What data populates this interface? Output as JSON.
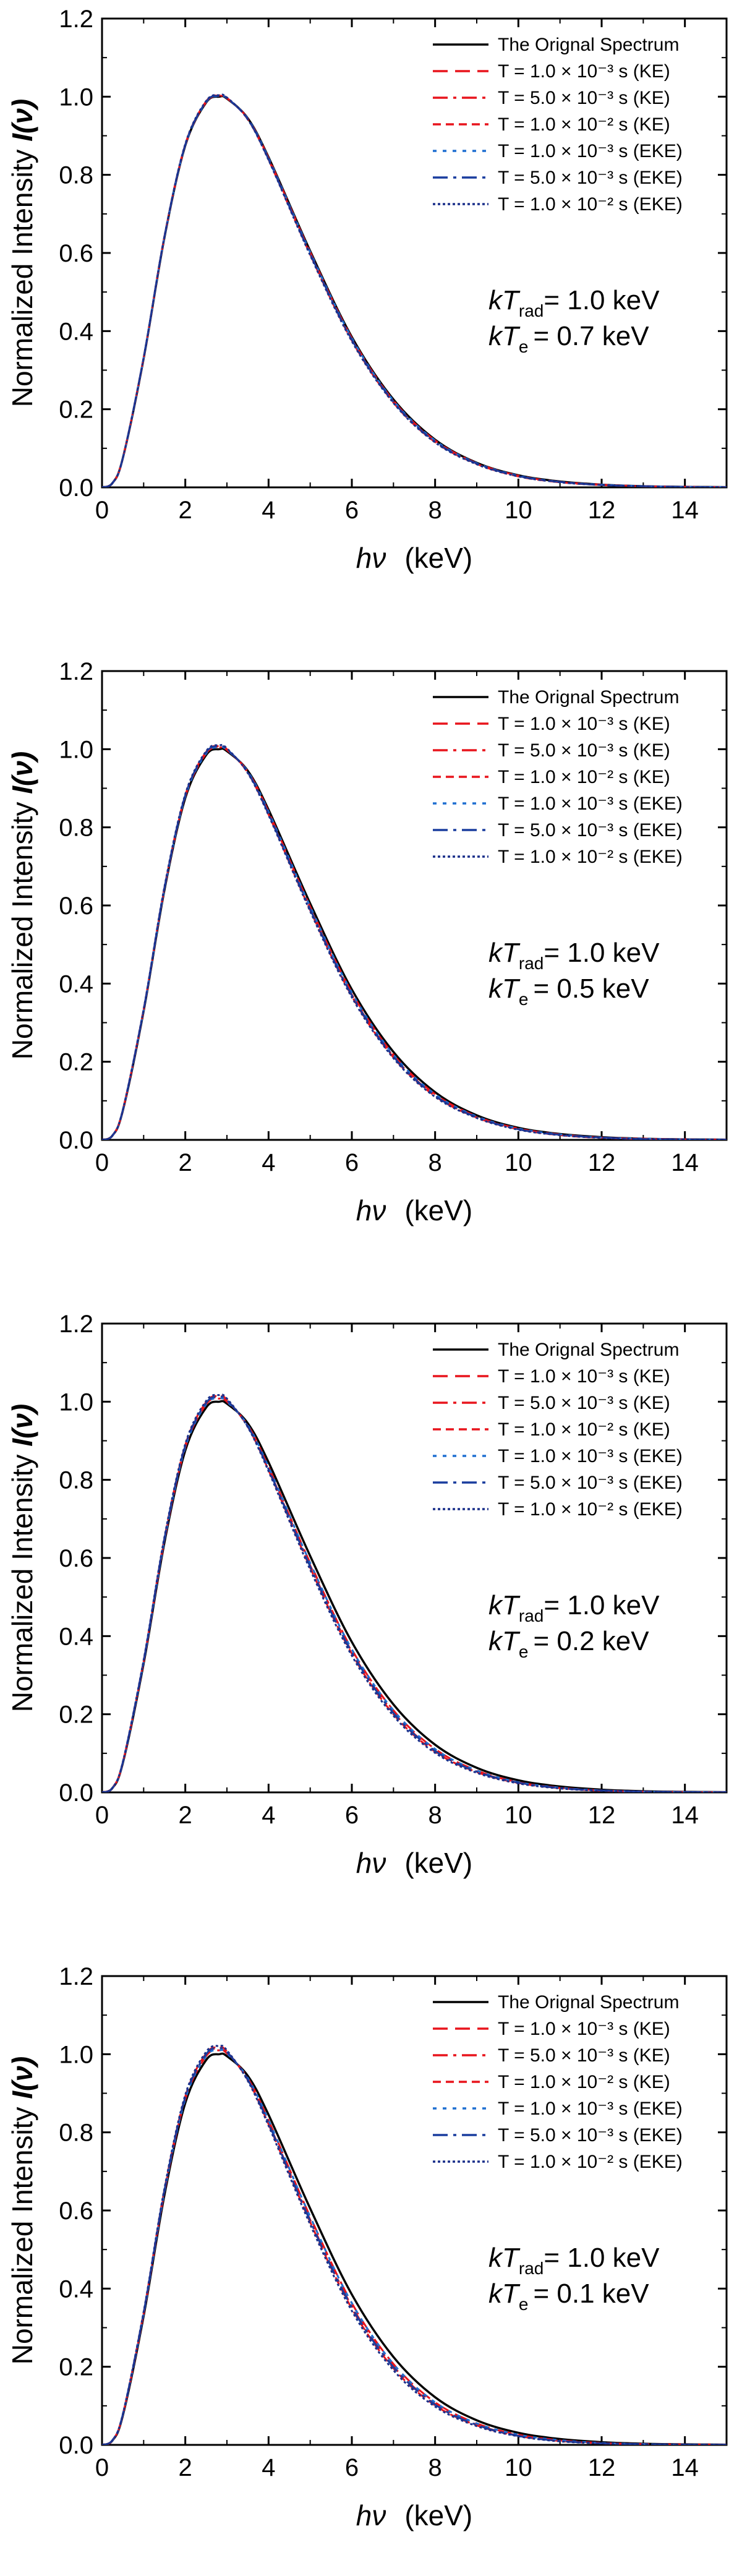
{
  "figure": {
    "xlabel_symbol": "hν",
    "xlabel_unit": "(keV)",
    "ylabel": "Normalized Intensity",
    "ylabel_symbol": "I(ν)",
    "xlim": [
      0,
      15
    ],
    "ylim": [
      0,
      1.2
    ],
    "x_ticks": [
      0,
      2,
      4,
      6,
      8,
      10,
      12,
      14
    ],
    "x_tick_labels": [
      "0",
      "2",
      "4",
      "6",
      "8",
      "10",
      "12",
      "14"
    ],
    "y_ticks": [
      0,
      0.2,
      0.4,
      0.6,
      0.8,
      1.0,
      1.2
    ],
    "y_tick_labels": [
      "0.0",
      "0.2",
      "0.4",
      "0.6",
      "0.8",
      "1.0",
      "1.2"
    ],
    "legend": [
      {
        "label": "The Orignal Spectrum",
        "color": "#000000",
        "dash": "solid"
      },
      {
        "label": "T = 1.0 × 10⁻³ s (KE)",
        "color": "#e8141c",
        "dash": "dash"
      },
      {
        "label": "T = 5.0 × 10⁻³ s (KE)",
        "color": "#e8141c",
        "dash": "dashdot"
      },
      {
        "label": "T = 1.0 × 10⁻² s (KE)",
        "color": "#e8141c",
        "dash": "shortdash"
      },
      {
        "label": "T = 1.0 × 10⁻³ s (EKE)",
        "color": "#1f6fd1",
        "dash": "dot"
      },
      {
        "label": "T = 5.0 × 10⁻³ s (EKE)",
        "color": "#1a3d9e",
        "dash": "dashdot"
      },
      {
        "label": "T = 1.0 × 10⁻² s (EKE)",
        "color": "#1a2f8a",
        "dash": "densedot"
      }
    ],
    "colors": {
      "original": "#000000",
      "ke": "#e8141c",
      "eke": "#1a3d9e",
      "visible_curve": "#3a4fa0"
    }
  },
  "chart_data": [
    {
      "type": "line",
      "title": "",
      "params_line1": "kT",
      "params_line1_sub": "rad",
      "params_line1_value": "= 1.0 keV",
      "params_line2": "kT",
      "params_line2_sub": "e",
      "params_line2_value": "= 0.7 keV",
      "kT_rad_keV": 1.0,
      "kT_e_keV": 0.7,
      "x": [
        0,
        0.25,
        0.5,
        1,
        1.5,
        2,
        2.5,
        2.82,
        3,
        3.5,
        4,
        5,
        6,
        7,
        8,
        9,
        10,
        11,
        12,
        13,
        14,
        15
      ],
      "series": [
        {
          "name": "The Orignal Spectrum",
          "values": [
            0,
            0.011,
            0.075,
            0.33,
            0.64,
            0.875,
            0.985,
            1.0,
            0.995,
            0.945,
            0.845,
            0.605,
            0.385,
            0.225,
            0.122,
            0.063,
            0.031,
            0.015,
            0.007,
            0.003,
            0.0014,
            0.0006
          ]
        },
        {
          "name": "T = 1.0 × 10⁻³ s (KE)",
          "values": [
            0,
            0.011,
            0.075,
            0.331,
            0.641,
            0.876,
            0.986,
            1.001,
            0.996,
            0.944,
            0.843,
            0.602,
            0.382,
            0.222,
            0.12,
            0.062,
            0.03,
            0.014,
            0.007,
            0.003,
            0.0013,
            0.0006
          ]
        },
        {
          "name": "T = 5.0 × 10⁻³ s (KE)",
          "values": [
            0,
            0.011,
            0.075,
            0.331,
            0.642,
            0.877,
            0.987,
            1.002,
            0.996,
            0.943,
            0.841,
            0.599,
            0.379,
            0.22,
            0.118,
            0.061,
            0.029,
            0.014,
            0.006,
            0.003,
            0.0012,
            0.0005
          ]
        },
        {
          "name": "T = 1.0 × 10⁻² s (KE)",
          "values": [
            0,
            0.011,
            0.075,
            0.332,
            0.643,
            0.878,
            0.988,
            1.003,
            0.997,
            0.942,
            0.839,
            0.596,
            0.376,
            0.217,
            0.116,
            0.06,
            0.028,
            0.013,
            0.006,
            0.003,
            0.0012,
            0.0005
          ]
        },
        {
          "name": "T = 1.0 × 10⁻³ s (EKE)",
          "values": [
            0,
            0.011,
            0.075,
            0.331,
            0.641,
            0.876,
            0.986,
            1.001,
            0.996,
            0.944,
            0.843,
            0.602,
            0.382,
            0.222,
            0.12,
            0.062,
            0.03,
            0.014,
            0.007,
            0.003,
            0.0013,
            0.0006
          ]
        },
        {
          "name": "T = 5.0 × 10⁻³ s (EKE)",
          "values": [
            0,
            0.011,
            0.075,
            0.332,
            0.642,
            0.877,
            0.987,
            1.002,
            0.996,
            0.943,
            0.84,
            0.598,
            0.378,
            0.219,
            0.117,
            0.061,
            0.029,
            0.014,
            0.006,
            0.003,
            0.0012,
            0.0005
          ]
        },
        {
          "name": "T = 1.0 × 10⁻² s (EKE)",
          "values": [
            0,
            0.011,
            0.075,
            0.332,
            0.643,
            0.879,
            0.989,
            1.004,
            0.998,
            0.942,
            0.838,
            0.594,
            0.374,
            0.216,
            0.115,
            0.059,
            0.028,
            0.013,
            0.006,
            0.003,
            0.0011,
            0.0005
          ]
        }
      ]
    },
    {
      "type": "line",
      "title": "",
      "params_line1": "kT",
      "params_line1_sub": "rad",
      "params_line1_value": "= 1.0 keV",
      "params_line2": "kT",
      "params_line2_sub": "e",
      "params_line2_value": "= 0.5 keV",
      "kT_rad_keV": 1.0,
      "kT_e_keV": 0.5,
      "x": [
        0,
        0.25,
        0.5,
        1,
        1.5,
        2,
        2.5,
        2.82,
        3,
        3.5,
        4,
        5,
        6,
        7,
        8,
        9,
        10,
        11,
        12,
        13,
        14,
        15
      ],
      "series": [
        {
          "name": "The Orignal Spectrum",
          "values": [
            0,
            0.011,
            0.075,
            0.33,
            0.64,
            0.875,
            0.985,
            1.0,
            0.995,
            0.945,
            0.845,
            0.605,
            0.385,
            0.225,
            0.122,
            0.063,
            0.031,
            0.015,
            0.007,
            0.003,
            0.0014,
            0.0006
          ]
        },
        {
          "name": "T = 1.0 × 10⁻³ s (KE)",
          "values": [
            0,
            0.011,
            0.076,
            0.332,
            0.643,
            0.879,
            0.989,
            1.004,
            0.998,
            0.943,
            0.84,
            0.597,
            0.377,
            0.218,
            0.117,
            0.06,
            0.029,
            0.014,
            0.006,
            0.003,
            0.0012,
            0.0005
          ]
        },
        {
          "name": "T = 5.0 × 10⁻³ s (KE)",
          "values": [
            0,
            0.011,
            0.076,
            0.333,
            0.645,
            0.881,
            0.991,
            1.006,
            0.999,
            0.941,
            0.836,
            0.592,
            0.372,
            0.214,
            0.114,
            0.058,
            0.028,
            0.013,
            0.006,
            0.003,
            0.0011,
            0.0005
          ]
        },
        {
          "name": "T = 1.0 × 10⁻² s (KE)",
          "values": [
            0,
            0.011,
            0.076,
            0.334,
            0.646,
            0.882,
            0.993,
            1.008,
            1.0,
            0.94,
            0.833,
            0.588,
            0.368,
            0.211,
            0.112,
            0.057,
            0.027,
            0.012,
            0.005,
            0.002,
            0.001,
            0.0004
          ]
        },
        {
          "name": "T = 1.0 × 10⁻³ s (EKE)",
          "values": [
            0,
            0.011,
            0.076,
            0.332,
            0.643,
            0.879,
            0.989,
            1.004,
            0.998,
            0.943,
            0.84,
            0.597,
            0.377,
            0.218,
            0.117,
            0.06,
            0.029,
            0.014,
            0.006,
            0.003,
            0.0012,
            0.0005
          ]
        },
        {
          "name": "T = 5.0 × 10⁻³ s (EKE)",
          "values": [
            0,
            0.011,
            0.076,
            0.333,
            0.645,
            0.882,
            0.992,
            1.007,
            1.0,
            0.941,
            0.835,
            0.59,
            0.37,
            0.213,
            0.113,
            0.058,
            0.027,
            0.013,
            0.006,
            0.002,
            0.0011,
            0.0004
          ]
        },
        {
          "name": "T = 1.0 × 10⁻² s (EKE)",
          "values": [
            0,
            0.011,
            0.077,
            0.335,
            0.648,
            0.885,
            0.995,
            1.01,
            1.002,
            0.939,
            0.831,
            0.585,
            0.365,
            0.209,
            0.11,
            0.056,
            0.026,
            0.012,
            0.005,
            0.002,
            0.001,
            0.0004
          ]
        }
      ]
    },
    {
      "type": "line",
      "title": "",
      "params_line1": "kT",
      "params_line1_sub": "rad",
      "params_line1_value": "= 1.0 keV",
      "params_line2": "kT",
      "params_line2_sub": "e",
      "params_line2_value": "= 0.2 keV",
      "kT_rad_keV": 1.0,
      "kT_e_keV": 0.2,
      "x": [
        0,
        0.25,
        0.5,
        1,
        1.5,
        2,
        2.5,
        2.82,
        3,
        3.5,
        4,
        5,
        6,
        7,
        8,
        9,
        10,
        11,
        12,
        13,
        14,
        15
      ],
      "series": [
        {
          "name": "The Orignal Spectrum",
          "values": [
            0,
            0.011,
            0.075,
            0.33,
            0.64,
            0.875,
            0.985,
            1.0,
            0.995,
            0.945,
            0.845,
            0.605,
            0.385,
            0.225,
            0.122,
            0.063,
            0.031,
            0.015,
            0.007,
            0.003,
            0.0014,
            0.0006
          ]
        },
        {
          "name": "T = 1.0 × 10⁻³ s (KE)",
          "values": [
            0,
            0.011,
            0.076,
            0.334,
            0.646,
            0.883,
            0.993,
            1.008,
            1.0,
            0.94,
            0.833,
            0.587,
            0.366,
            0.21,
            0.111,
            0.056,
            0.026,
            0.012,
            0.005,
            0.002,
            0.001,
            0.0004
          ]
        },
        {
          "name": "T = 5.0 × 10⁻³ s (KE)",
          "values": [
            0,
            0.011,
            0.077,
            0.336,
            0.649,
            0.886,
            0.996,
            1.011,
            1.003,
            0.938,
            0.829,
            0.581,
            0.36,
            0.205,
            0.107,
            0.054,
            0.025,
            0.011,
            0.005,
            0.002,
            0.0009,
            0.0004
          ]
        },
        {
          "name": "T = 1.0 × 10⁻² s (KE)",
          "values": [
            0,
            0.012,
            0.077,
            0.337,
            0.651,
            0.889,
            0.999,
            1.014,
            1.005,
            0.936,
            0.825,
            0.575,
            0.355,
            0.2,
            0.104,
            0.052,
            0.024,
            0.011,
            0.004,
            0.002,
            0.0008,
            0.0003
          ]
        },
        {
          "name": "T = 1.0 × 10⁻³ s (EKE)",
          "values": [
            0,
            0.011,
            0.076,
            0.334,
            0.646,
            0.883,
            0.993,
            1.008,
            1.0,
            0.94,
            0.833,
            0.587,
            0.366,
            0.21,
            0.111,
            0.056,
            0.026,
            0.012,
            0.005,
            0.002,
            0.001,
            0.0004
          ]
        },
        {
          "name": "T = 5.0 × 10⁻³ s (EKE)",
          "values": [
            0,
            0.011,
            0.077,
            0.336,
            0.65,
            0.887,
            0.997,
            1.012,
            1.004,
            0.937,
            0.827,
            0.578,
            0.358,
            0.203,
            0.106,
            0.053,
            0.025,
            0.011,
            0.005,
            0.002,
            0.0009,
            0.0003
          ]
        },
        {
          "name": "T = 1.0 × 10⁻² s (EKE)",
          "values": [
            0,
            0.012,
            0.078,
            0.339,
            0.654,
            0.892,
            1.002,
            1.017,
            1.008,
            0.935,
            0.822,
            0.57,
            0.35,
            0.196,
            0.101,
            0.05,
            0.023,
            0.01,
            0.004,
            0.002,
            0.0008,
            0.0003
          ]
        }
      ]
    },
    {
      "type": "line",
      "title": "",
      "params_line1": "kT",
      "params_line1_sub": "rad",
      "params_line1_value": "= 1.0 keV",
      "params_line2": "kT",
      "params_line2_sub": "e",
      "params_line2_value": "= 0.1 keV",
      "kT_rad_keV": 1.0,
      "kT_e_keV": 0.1,
      "x": [
        0,
        0.25,
        0.5,
        1,
        1.5,
        2,
        2.5,
        2.82,
        3,
        3.5,
        4,
        5,
        6,
        7,
        8,
        9,
        10,
        11,
        12,
        13,
        14,
        15
      ],
      "series": [
        {
          "name": "The Orignal Spectrum",
          "values": [
            0,
            0.011,
            0.075,
            0.33,
            0.64,
            0.875,
            0.985,
            1.0,
            0.995,
            0.945,
            0.845,
            0.605,
            0.385,
            0.225,
            0.122,
            0.063,
            0.031,
            0.015,
            0.007,
            0.003,
            0.0014,
            0.0006
          ]
        },
        {
          "name": "T = 1.0 × 10⁻³ s (KE)",
          "values": [
            0,
            0.011,
            0.077,
            0.335,
            0.648,
            0.885,
            0.995,
            1.01,
            1.002,
            0.939,
            0.831,
            0.584,
            0.363,
            0.207,
            0.109,
            0.055,
            0.026,
            0.012,
            0.005,
            0.002,
            0.0009,
            0.0004
          ]
        },
        {
          "name": "T = 5.0 × 10⁻³ s (KE)",
          "values": [
            0,
            0.012,
            0.077,
            0.337,
            0.651,
            0.889,
            0.999,
            1.014,
            1.005,
            0.936,
            0.825,
            0.576,
            0.355,
            0.201,
            0.105,
            0.052,
            0.024,
            0.011,
            0.004,
            0.002,
            0.0008,
            0.0003
          ]
        },
        {
          "name": "T = 1.0 × 10⁻² s (KE)",
          "values": [
            0,
            0.012,
            0.078,
            0.339,
            0.654,
            0.892,
            1.002,
            1.017,
            1.007,
            0.934,
            0.821,
            0.57,
            0.349,
            0.196,
            0.101,
            0.05,
            0.023,
            0.01,
            0.004,
            0.002,
            0.0007,
            0.0003
          ]
        },
        {
          "name": "T = 1.0 × 10⁻³ s (EKE)",
          "values": [
            0,
            0.011,
            0.077,
            0.335,
            0.648,
            0.885,
            0.995,
            1.01,
            1.002,
            0.939,
            0.831,
            0.584,
            0.363,
            0.207,
            0.109,
            0.055,
            0.026,
            0.012,
            0.005,
            0.002,
            0.0009,
            0.0004
          ]
        },
        {
          "name": "T = 5.0 × 10⁻³ s (EKE)",
          "values": [
            0,
            0.012,
            0.078,
            0.338,
            0.652,
            0.89,
            1.0,
            1.015,
            1.006,
            0.935,
            0.823,
            0.573,
            0.352,
            0.199,
            0.103,
            0.051,
            0.023,
            0.01,
            0.004,
            0.002,
            0.0008,
            0.0003
          ]
        },
        {
          "name": "T = 1.0 × 10⁻² s (EKE)",
          "values": [
            0,
            0.012,
            0.079,
            0.341,
            0.657,
            0.896,
            1.006,
            1.021,
            1.01,
            0.932,
            0.817,
            0.564,
            0.343,
            0.191,
            0.098,
            0.048,
            0.022,
            0.009,
            0.004,
            0.001,
            0.0006,
            0.0002
          ]
        }
      ]
    }
  ]
}
